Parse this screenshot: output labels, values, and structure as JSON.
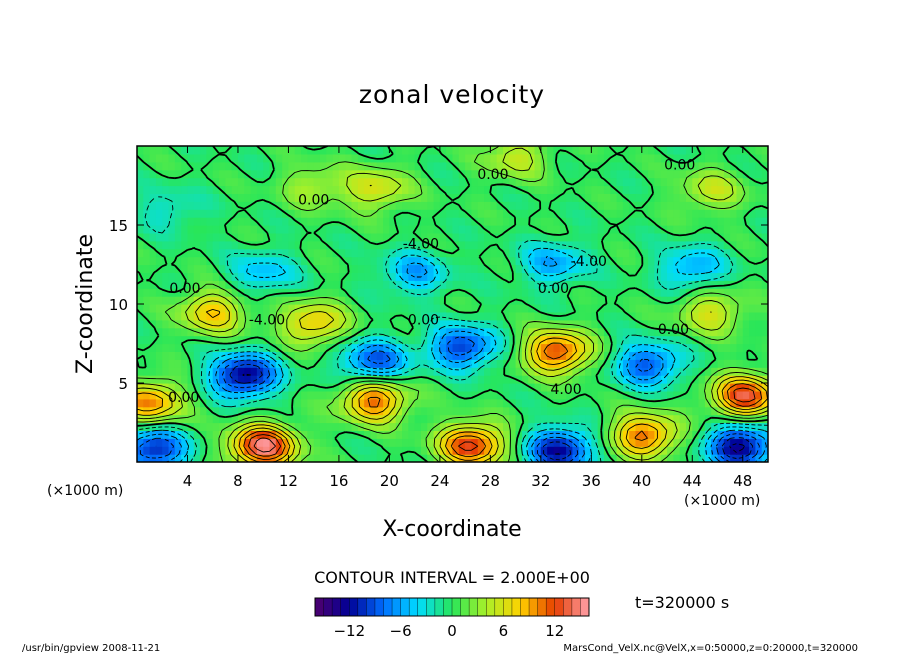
{
  "chart_data": {
    "type": "heatmap",
    "title": "zonal velocity",
    "xlabel": "X-coordinate",
    "ylabel": "Z-coordinate",
    "x_unit": "(×1000 m)",
    "y_unit": "(×1000 m)",
    "xlim": [
      0,
      50
    ],
    "ylim": [
      0,
      20
    ],
    "x_ticks": [
      4,
      8,
      12,
      16,
      20,
      24,
      28,
      32,
      36,
      40,
      44,
      48
    ],
    "y_ticks": [
      5,
      10,
      15
    ],
    "contour_interval_text": "CONTOUR INTERVAL = 2.000E+00",
    "time_text": "t=320000 s",
    "colorbar": {
      "min": -16,
      "max": 16,
      "ticks": [
        -12,
        -6,
        0,
        6,
        12
      ]
    },
    "contour_labels": [
      {
        "x": 28.2,
        "z": 17.9,
        "text": "0.00"
      },
      {
        "x": 43.0,
        "z": 18.5,
        "text": "0.00"
      },
      {
        "x": 14.0,
        "z": 16.3,
        "text": "0.00"
      },
      {
        "x": 22.5,
        "z": 13.5,
        "text": "-4.00"
      },
      {
        "x": 35.8,
        "z": 12.4,
        "text": "-4.00"
      },
      {
        "x": 3.8,
        "z": 10.7,
        "text": "0.00"
      },
      {
        "x": 33.0,
        "z": 10.7,
        "text": "0.00"
      },
      {
        "x": 10.3,
        "z": 8.7,
        "text": "-4.00"
      },
      {
        "x": 22.7,
        "z": 8.7,
        "text": "0.00"
      },
      {
        "x": 42.5,
        "z": 8.1,
        "text": "0.00"
      },
      {
        "x": 3.7,
        "z": 3.8,
        "text": "0.00"
      },
      {
        "x": 34.0,
        "z": 4.3,
        "text": "4.00"
      }
    ],
    "features": [
      {
        "x": 8.5,
        "z": 5.5,
        "value": -13
      },
      {
        "x": 10.0,
        "z": 1.0,
        "value": 15
      },
      {
        "x": 18.8,
        "z": 6.4,
        "value": -9
      },
      {
        "x": 18.8,
        "z": 3.9,
        "value": 11
      },
      {
        "x": 25.8,
        "z": 7.3,
        "value": -10
      },
      {
        "x": 26.5,
        "z": 1.1,
        "value": 13
      },
      {
        "x": 33.3,
        "z": 7.0,
        "value": 12
      },
      {
        "x": 33.5,
        "z": 0.8,
        "value": -12
      },
      {
        "x": 40.5,
        "z": 6.2,
        "value": -9
      },
      {
        "x": 40.2,
        "z": 1.7,
        "value": 11
      },
      {
        "x": 48.2,
        "z": 4.2,
        "value": 13
      },
      {
        "x": 47.8,
        "z": 1.0,
        "value": -13
      },
      {
        "x": 1.0,
        "z": 3.8,
        "value": 10
      },
      {
        "x": 1.3,
        "z": 0.8,
        "value": -11
      },
      {
        "x": 14.0,
        "z": 8.8,
        "value": 8
      },
      {
        "x": 22.0,
        "z": 12.0,
        "value": -6
      },
      {
        "x": 33.0,
        "z": 12.6,
        "value": -6
      },
      {
        "x": 44.0,
        "z": 12.3,
        "value": -6
      },
      {
        "x": 10.0,
        "z": 12.0,
        "value": -5
      },
      {
        "x": 14.0,
        "z": 17.5,
        "value": 4
      },
      {
        "x": 19.0,
        "z": 17.3,
        "value": 6
      },
      {
        "x": 45.5,
        "z": 17.2,
        "value": 5
      },
      {
        "x": 30.0,
        "z": 19.3,
        "value": 5
      },
      {
        "x": 6.0,
        "z": 9.5,
        "value": 8
      },
      {
        "x": 45.5,
        "z": 9.5,
        "value": 6
      },
      {
        "x": 2.5,
        "z": 16.0,
        "value": -3
      }
    ]
  },
  "footer": {
    "left": "/usr/bin/gpview   2008-11-21",
    "right": "MarsCond_VelX.nc@VelX,x=0:50000,z=0:20000,t=320000"
  }
}
